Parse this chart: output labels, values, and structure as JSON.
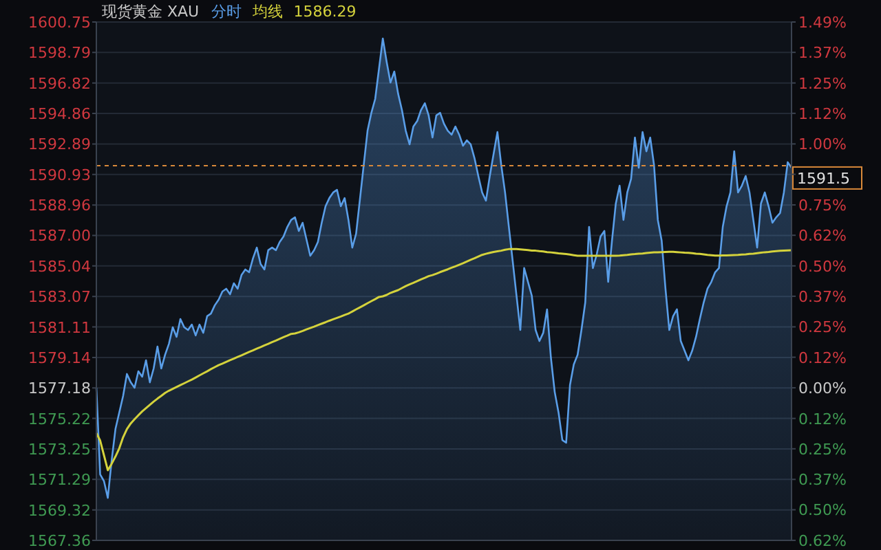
{
  "chart_data": {
    "type": "line",
    "title": "现货黄金 XAU",
    "annotations": [
      "1586.29"
    ],
    "categories": [
      null,
      null,
      null,
      null,
      null,
      null,
      null,
      null,
      null,
      null,
      null,
      null,
      null,
      null,
      null,
      null,
      null,
      null,
      null,
      null,
      null,
      null,
      null,
      null,
      null,
      null,
      null,
      null,
      null,
      null,
      null,
      null,
      null,
      null,
      null,
      null,
      null,
      null,
      null,
      null,
      null,
      null,
      null,
      null,
      null,
      null,
      null,
      null,
      null,
      null,
      null,
      null,
      null,
      null,
      null,
      null,
      null,
      null,
      null,
      null,
      null,
      null,
      null,
      null,
      null,
      null,
      null,
      null,
      null,
      null,
      null,
      null,
      null,
      null,
      null,
      null,
      null,
      null,
      null,
      null,
      null,
      null,
      null,
      null,
      null,
      null,
      null,
      null,
      null,
      null,
      null,
      null,
      null,
      null,
      null,
      null,
      null,
      null,
      null,
      null,
      null,
      null,
      null,
      null,
      null,
      null,
      null,
      null,
      null,
      null,
      null,
      null,
      null,
      null,
      null,
      null,
      null,
      null,
      null,
      null,
      null,
      null,
      null,
      null,
      null,
      null,
      null,
      null,
      null,
      null,
      null,
      null,
      null,
      null,
      null,
      null,
      null,
      null,
      null,
      null,
      null,
      null,
      null,
      null,
      null,
      null,
      null,
      null,
      null,
      null,
      null,
      null,
      null,
      null,
      null,
      null,
      null,
      null,
      null,
      null,
      null,
      null,
      null,
      null,
      null,
      null,
      null,
      null,
      null,
      null,
      null,
      null,
      null,
      null,
      null,
      null,
      null,
      null,
      null,
      null,
      null,
      null,
      null
    ],
    "ylim": [
      1567.36,
      1600.75
    ],
    "yticks": [
      1567.36,
      1569.32,
      1571.29,
      1573.25,
      1575.22,
      1577.18,
      1579.14,
      1581.11,
      1583.07,
      1585.04,
      {
        "value": 1587,
        "label": "1587.00"
      },
      1588.96,
      1590.93,
      1592.89,
      1594.86,
      1596.82,
      1598.79,
      1600.75
    ],
    "y2lim": [
      -0.623,
      1.494
    ],
    "y2ticks": [
      {
        "value": -0.623,
        "label": "0.62%"
      },
      {
        "value": -0.498,
        "label": "0.50%"
      },
      {
        "value": -0.374,
        "label": "0.37%"
      },
      {
        "value": -0.249,
        "label": "0.25%"
      },
      {
        "value": -0.125,
        "label": "0.12%"
      },
      {
        "value": 0,
        "label": "0.00%"
      },
      {
        "value": 0.125,
        "label": "0.12%"
      },
      {
        "value": 0.249,
        "label": "0.25%"
      },
      {
        "value": 0.374,
        "label": "0.37%"
      },
      {
        "value": 0.498,
        "label": "0.50%"
      },
      {
        "value": 0.623,
        "label": "0.62%"
      },
      {
        "value": 0.747,
        "label": "0.75%"
      },
      {
        "value": 0.872,
        "label": null
      },
      {
        "value": 0.996,
        "label": "1.00%"
      },
      {
        "value": 1.121,
        "label": "1.12%"
      },
      {
        "value": 1.245,
        "label": "1.25%"
      },
      {
        "value": 1.37,
        "label": "1.37%"
      },
      {
        "value": 1.494,
        "label": "1.49%"
      }
    ],
    "grid": "y",
    "ref_lines": [
      {
        "axis": "y",
        "value": 1591.5,
        "label": "1591.5",
        "color": "#d9893a",
        "line_style": "dashed"
      }
    ],
    "series": [
      {
        "name": "分时",
        "type": "area",
        "color": "#5a9ee8",
        "values": [
          1577.19,
          1571.61,
          1571.17,
          1570.1,
          1572.5,
          1574.53,
          1575.6,
          1576.66,
          1578.08,
          1577.54,
          1577.19,
          1578.25,
          1577.9,
          1578.96,
          1577.54,
          1578.43,
          1579.85,
          1578.43,
          1579.32,
          1580.02,
          1581.09,
          1580.47,
          1581.62,
          1581.09,
          1580.91,
          1581.26,
          1580.56,
          1581.26,
          1580.73,
          1581.8,
          1581.97,
          1582.5,
          1582.86,
          1583.39,
          1583.57,
          1583.21,
          1583.92,
          1583.57,
          1584.45,
          1584.81,
          1584.63,
          1585.52,
          1586.22,
          1585.16,
          1584.81,
          1586.05,
          1586.22,
          1586.05,
          1586.58,
          1586.93,
          1587.55,
          1588.0,
          1588.17,
          1587.29,
          1587.82,
          1586.76,
          1585.69,
          1586.05,
          1586.58,
          1587.82,
          1588.88,
          1589.41,
          1589.77,
          1589.94,
          1588.88,
          1589.41,
          1588.0,
          1586.22,
          1587.11,
          1589.32,
          1591.54,
          1593.75,
          1594.9,
          1595.79,
          1597.74,
          1599.69,
          1598.18,
          1596.85,
          1597.56,
          1596.14,
          1595.08,
          1593.75,
          1592.87,
          1594.02,
          1594.37,
          1595.08,
          1595.52,
          1594.73,
          1593.31,
          1594.73,
          1594.9,
          1594.2,
          1593.75,
          1593.49,
          1594.02,
          1593.49,
          1592.78,
          1593.13,
          1592.87,
          1591.98,
          1590.83,
          1589.77,
          1589.24,
          1590.83,
          1592.25,
          1593.66,
          1591.54,
          1589.77,
          1587.55,
          1585.34,
          1583.12,
          1580.91,
          1584.9,
          1584.01,
          1583.12,
          1580.91,
          1580.2,
          1580.73,
          1582.24,
          1579.14,
          1576.92,
          1575.6,
          1573.82,
          1573.65,
          1577.37,
          1578.7,
          1579.32,
          1580.91,
          1582.68,
          1587.55,
          1584.9,
          1585.78,
          1586.93,
          1587.29,
          1584.01,
          1586.67,
          1589.06,
          1590.21,
          1588.0,
          1589.77,
          1590.65,
          1593.31,
          1591.36,
          1593.66,
          1592.42,
          1593.31,
          1591.54,
          1588.0,
          1586.67,
          1583.57,
          1580.91,
          1581.8,
          1582.24,
          1580.2,
          1579.58,
          1578.96,
          1579.58,
          1580.47,
          1581.62,
          1582.68,
          1583.57,
          1584.01,
          1584.63,
          1584.9,
          1587.55,
          1588.88,
          1589.77,
          1592.42,
          1589.77,
          1590.21,
          1590.83,
          1589.77,
          1588.0,
          1586.22,
          1589.06,
          1589.77,
          1588.88,
          1587.82,
          1588.17,
          1588.44,
          1589.77,
          1591.72,
          1591.36
        ]
      },
      {
        "name": "均线",
        "type": "line",
        "color": "#d4d23c",
        "values": [
          1574.27,
          1573.79,
          1572.84,
          1571.88,
          1572.29,
          1572.76,
          1573.29,
          1574.0,
          1574.53,
          1574.89,
          1575.16,
          1575.42,
          1575.67,
          1575.88,
          1576.09,
          1576.3,
          1576.49,
          1576.67,
          1576.86,
          1577.0,
          1577.12,
          1577.24,
          1577.36,
          1577.48,
          1577.6,
          1577.72,
          1577.85,
          1577.99,
          1578.12,
          1578.25,
          1578.39,
          1578.52,
          1578.65,
          1578.75,
          1578.86,
          1578.97,
          1579.07,
          1579.18,
          1579.28,
          1579.39,
          1579.5,
          1579.6,
          1579.71,
          1579.81,
          1579.92,
          1580.02,
          1580.13,
          1580.23,
          1580.34,
          1580.45,
          1580.55,
          1580.66,
          1580.69,
          1580.76,
          1580.85,
          1580.95,
          1581.04,
          1581.13,
          1581.23,
          1581.32,
          1581.41,
          1581.51,
          1581.6,
          1581.69,
          1581.78,
          1581.88,
          1581.97,
          1582.1,
          1582.24,
          1582.37,
          1582.5,
          1582.64,
          1582.77,
          1582.9,
          1583.04,
          1583.08,
          1583.17,
          1583.3,
          1583.39,
          1583.48,
          1583.61,
          1583.74,
          1583.85,
          1583.95,
          1584.06,
          1584.17,
          1584.27,
          1584.38,
          1584.45,
          1584.54,
          1584.64,
          1584.73,
          1584.82,
          1584.92,
          1585.01,
          1585.11,
          1585.21,
          1585.32,
          1585.43,
          1585.53,
          1585.64,
          1585.75,
          1585.82,
          1585.88,
          1585.94,
          1585.98,
          1586.02,
          1586.08,
          1586.12,
          1586.13,
          1586.12,
          1586.1,
          1586.08,
          1586.06,
          1586.03,
          1586.02,
          1585.99,
          1585.97,
          1585.93,
          1585.91,
          1585.88,
          1585.85,
          1585.83,
          1585.8,
          1585.77,
          1585.73,
          1585.69,
          1585.69,
          1585.69,
          1585.69,
          1585.69,
          1585.69,
          1585.69,
          1585.69,
          1585.69,
          1585.69,
          1585.69,
          1585.7,
          1585.73,
          1585.75,
          1585.78,
          1585.8,
          1585.83,
          1585.84,
          1585.87,
          1585.89,
          1585.91,
          1585.92,
          1585.93,
          1585.94,
          1585.95,
          1585.95,
          1585.93,
          1585.91,
          1585.89,
          1585.88,
          1585.86,
          1585.83,
          1585.81,
          1585.78,
          1585.75,
          1585.73,
          1585.7,
          1585.7,
          1585.71,
          1585.72,
          1585.73,
          1585.74,
          1585.75,
          1585.77,
          1585.78,
          1585.81,
          1585.83,
          1585.86,
          1585.89,
          1585.92,
          1585.94,
          1585.97,
          1585.99,
          1586.01,
          1586.03,
          1586.04,
          1586.05
        ]
      }
    ]
  }
}
